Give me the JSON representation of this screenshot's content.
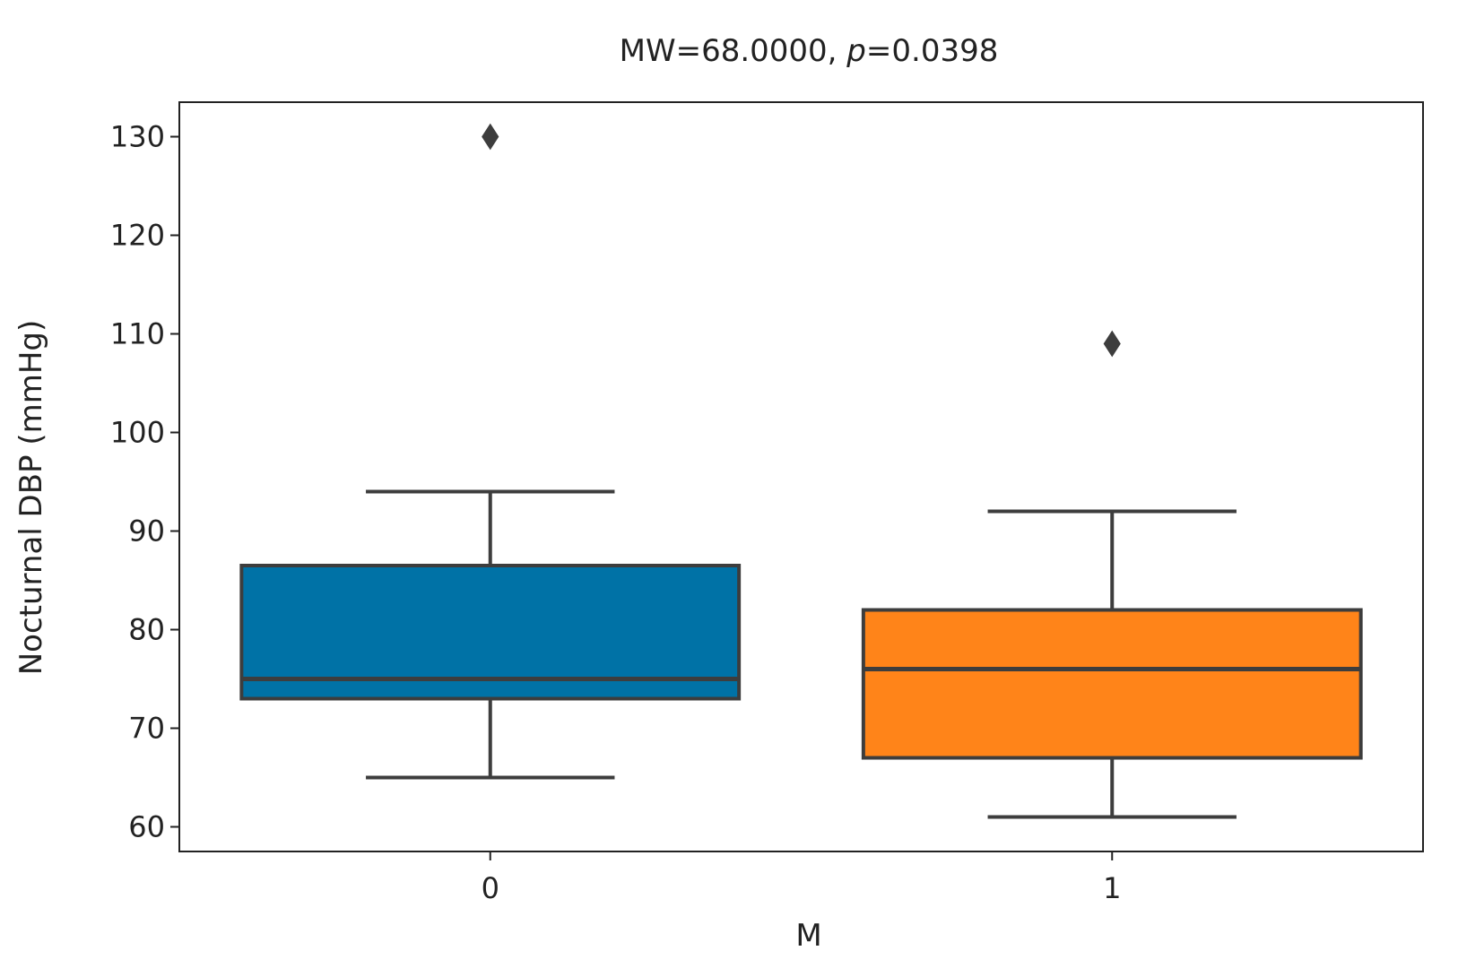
{
  "chart_data": {
    "type": "box",
    "title_parts": {
      "pre": "MW=68.0000, ",
      "italic": "p",
      "post": "=0.0398"
    },
    "xlabel": "M",
    "ylabel": "Nocturnal DBP (mmHg)",
    "categories": [
      "0",
      "1"
    ],
    "ylim": [
      57.5,
      133.5
    ],
    "yticks": [
      60,
      70,
      80,
      90,
      100,
      110,
      120,
      130
    ],
    "grid": false,
    "series": [
      {
        "category": "0",
        "color": "#0072a6",
        "whisker_low": 65,
        "q1": 73,
        "median": 75,
        "q3": 86.5,
        "whisker_high": 94,
        "outliers": [
          130
        ]
      },
      {
        "category": "1",
        "color": "#ff8419",
        "whisker_low": 61,
        "q1": 67,
        "median": 76,
        "q3": 82,
        "whisker_high": 92,
        "outliers": [
          109
        ]
      }
    ],
    "edge_color": "#3d3d3d"
  }
}
